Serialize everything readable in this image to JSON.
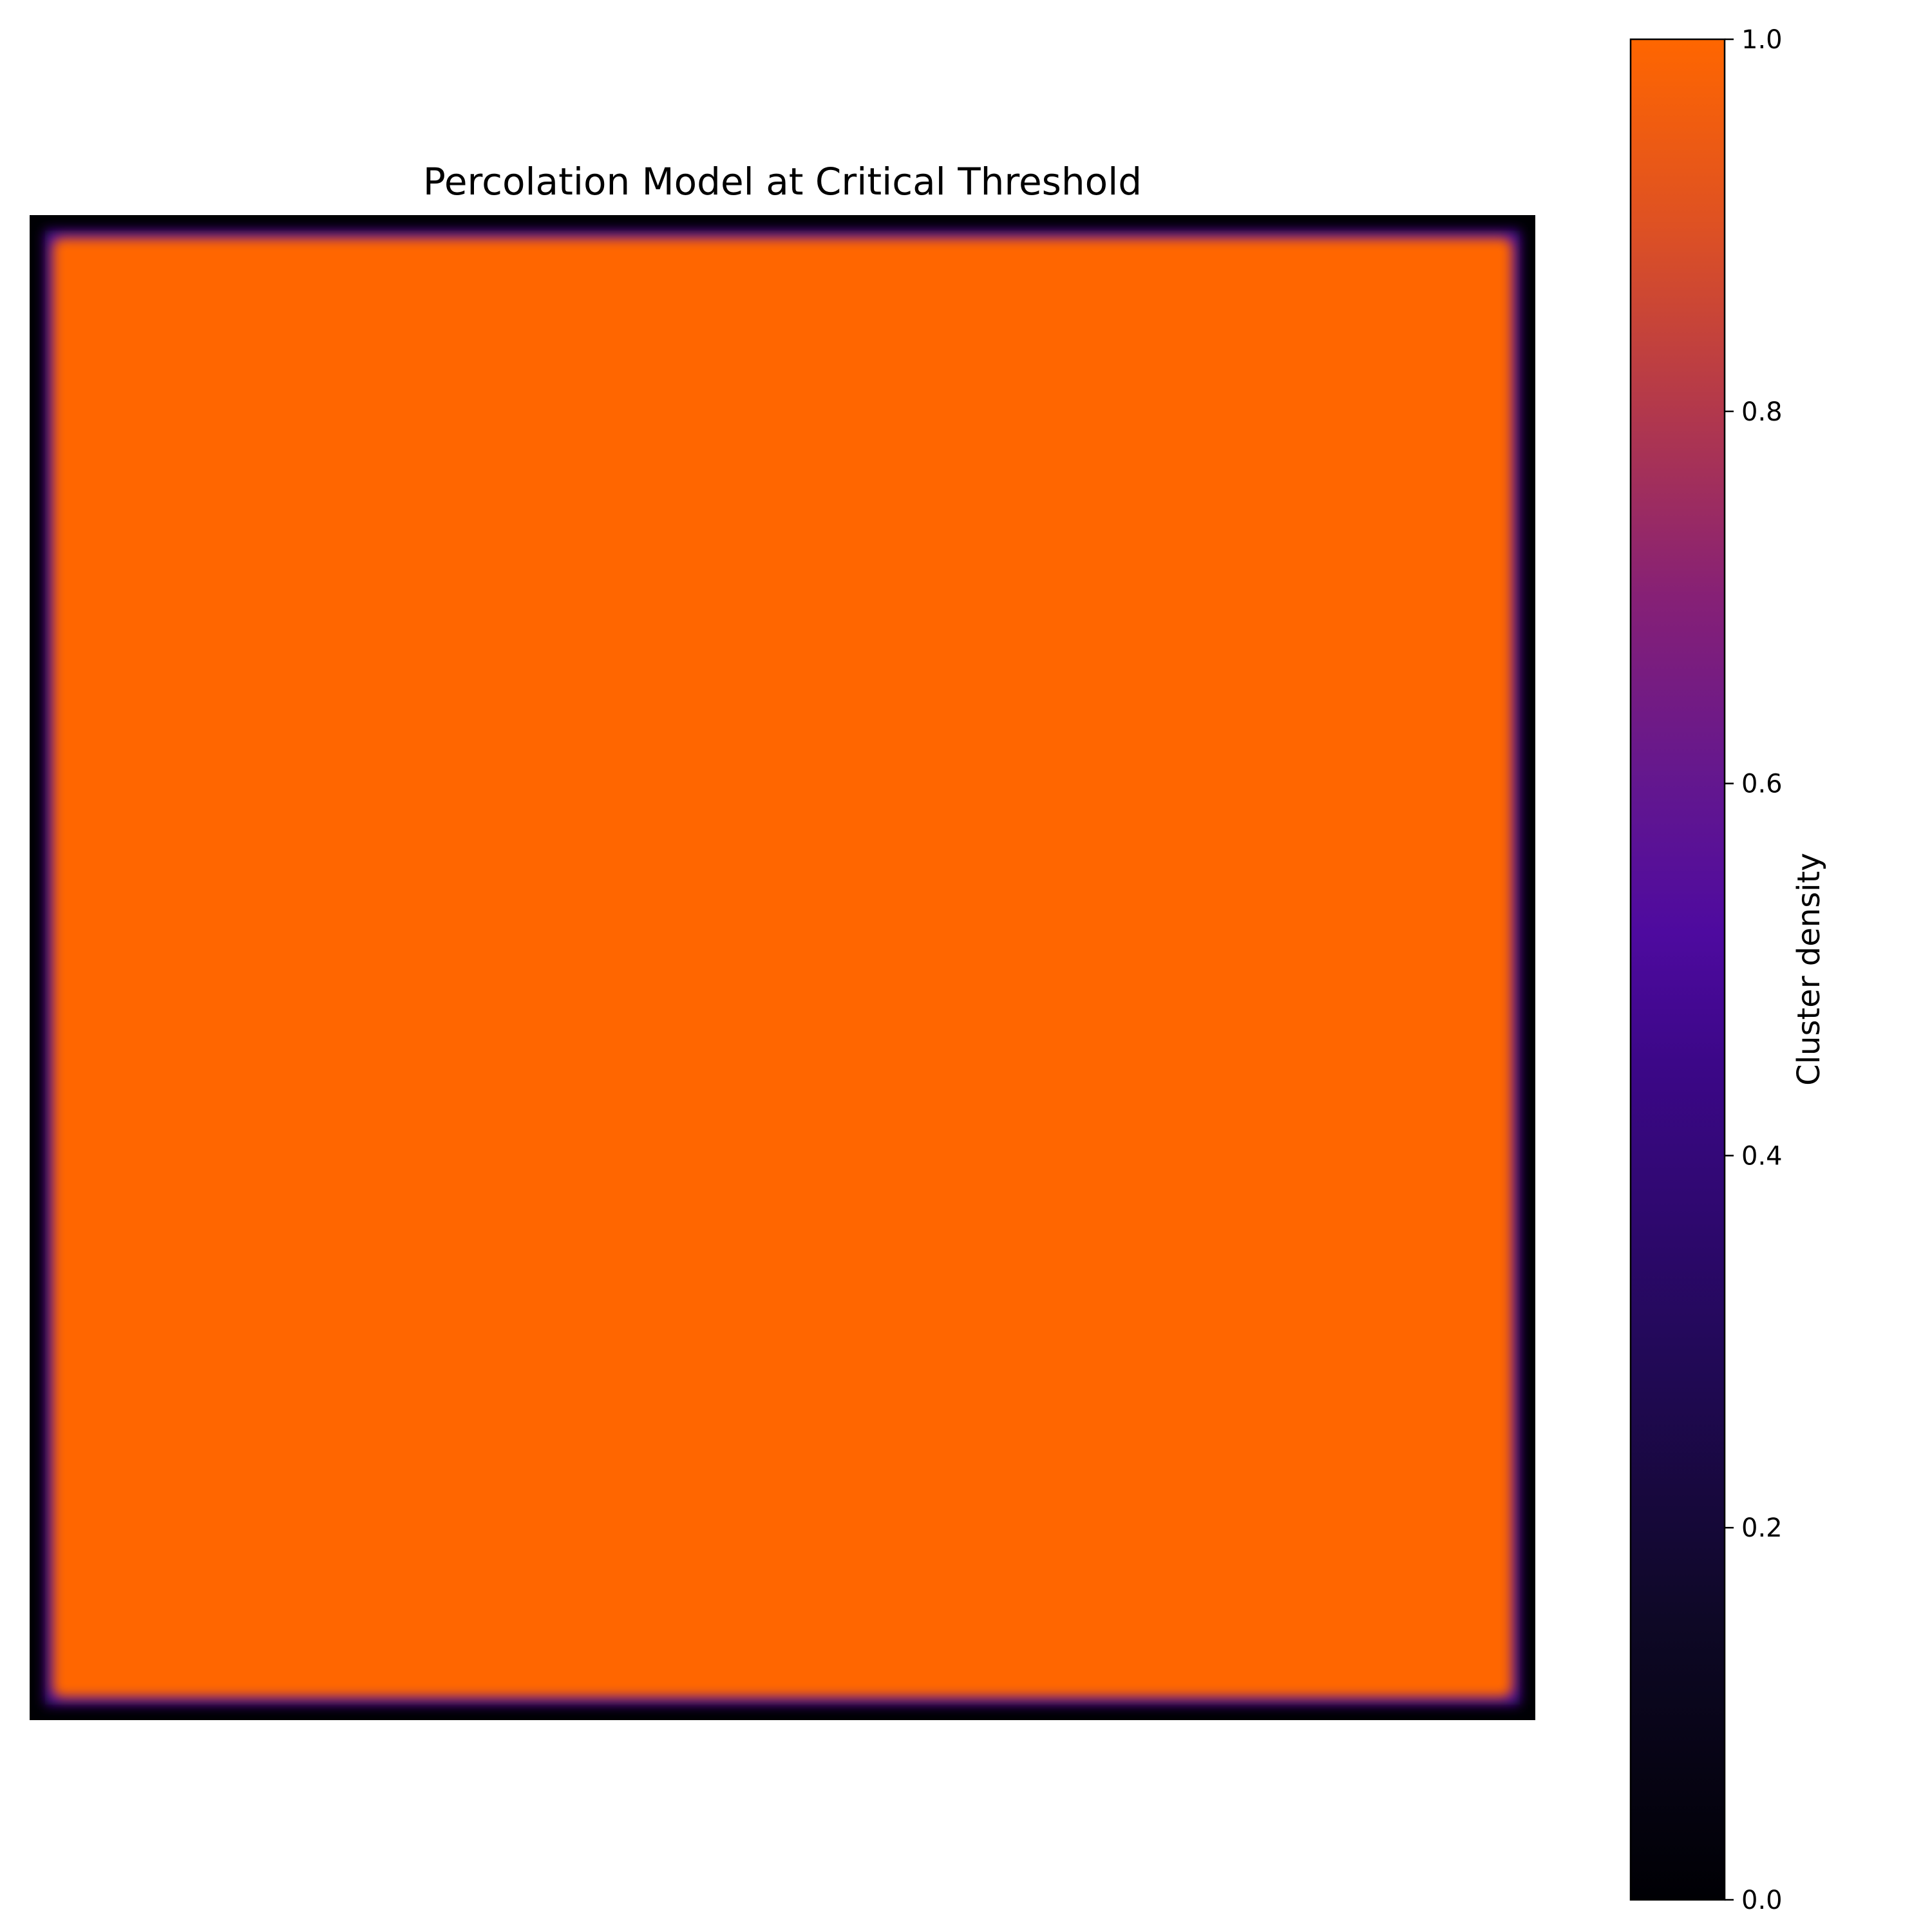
{
  "chart_data": {
    "type": "heatmap",
    "title": "Percolation Model at Critical Threshold",
    "colormap": "inferno-like",
    "grid_size": [
      100,
      100
    ],
    "interior_value": 1.0,
    "boundary_value": 0.0,
    "axes_visible": false,
    "grid": false,
    "colorbar": {
      "label": "Cluster density",
      "range": [
        0.0,
        1.0
      ],
      "ticks": [
        0.0,
        0.2,
        0.4,
        0.6,
        0.8,
        1.0
      ],
      "tick_labels": [
        "0.0",
        "0.2",
        "0.4",
        "0.6",
        "0.8",
        "1.0"
      ],
      "position": "right"
    },
    "colors": {
      "low": "#000004",
      "mid_low": "#1d0c3f",
      "mid": "#4b0a9c",
      "mid_high": "#bb3b47",
      "high": "#ff6600"
    }
  }
}
